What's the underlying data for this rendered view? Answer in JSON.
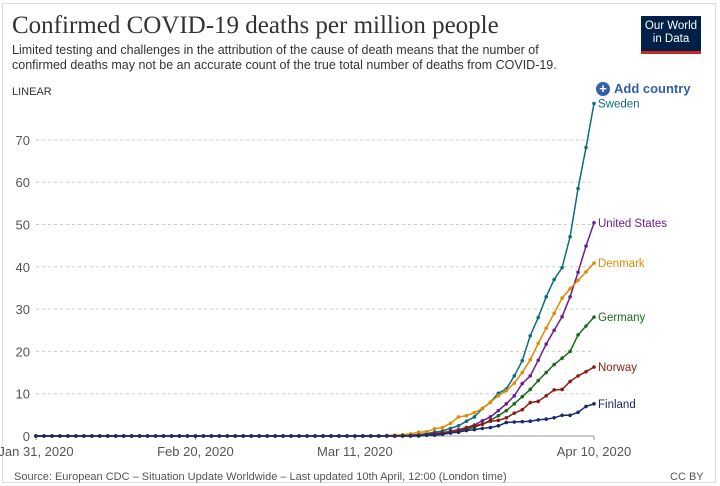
{
  "header": {
    "title": "Confirmed COVID-19 deaths per million people",
    "subtitle": "Limited testing and challenges in the attribution of the cause of death means that the number of confirmed deaths may not be an accurate count of the true total number of deaths from COVID-19.",
    "logo_line1": "Our World",
    "logo_line2": "in Data",
    "scale_toggle": "LINEAR",
    "add_country": "Add country",
    "add_icon": "plus-circle-icon"
  },
  "footer": {
    "source": "Source: European CDC – Situation Update Worldwide – Last updated 10th April, 12:00 (London time)",
    "license": "CC BY"
  },
  "chart_data": {
    "type": "line",
    "title": "Confirmed COVID-19 deaths per million people",
    "ylim": [
      0,
      80
    ],
    "yticks": [
      0,
      10,
      20,
      30,
      40,
      50,
      60,
      70
    ],
    "x_range": [
      "2020-01-31",
      "2020-04-10"
    ],
    "xticks": [
      {
        "date": "2020-01-31",
        "label": "Jan 31, 2020"
      },
      {
        "date": "2020-02-20",
        "label": "Feb 20, 2020"
      },
      {
        "date": "2020-03-11",
        "label": "Mar 11, 2020"
      },
      {
        "date": "2020-04-10",
        "label": "Apr 10, 2020"
      }
    ],
    "grid": "horizontal dashed",
    "legend": "right (end-of-line labels)",
    "series": [
      {
        "name": "Sweden",
        "color": "#0b6e79",
        "data": {
          "2020-01-31": 0,
          "2020-03-10": 0,
          "2020-03-11": 0,
          "2020-03-12": 0,
          "2020-03-13": 0,
          "2020-03-14": 0,
          "2020-03-15": 0.1,
          "2020-03-16": 0.1,
          "2020-03-17": 0.1,
          "2020-03-18": 0.2,
          "2020-03-19": 0.3,
          "2020-03-20": 0.6,
          "2020-03-21": 0.9,
          "2020-03-22": 1.2,
          "2020-03-23": 1.8,
          "2020-03-24": 2.4,
          "2020-03-25": 3.5,
          "2020-03-26": 4.5,
          "2020-03-27": 6.5,
          "2020-03-28": 8.0,
          "2020-03-29": 10.1,
          "2020-03-30": 11.1,
          "2020-03-31": 14.2,
          "2020-04-01": 17.8,
          "2020-04-02": 23.7,
          "2020-04-03": 28.0,
          "2020-04-04": 32.9,
          "2020-04-05": 37.0,
          "2020-04-06": 39.8,
          "2020-04-07": 47.1,
          "2020-04-08": 58.5,
          "2020-04-09": 68.2,
          "2020-04-10": 78.6
        }
      },
      {
        "name": "United States",
        "color": "#6d1d8e",
        "data": {
          "2020-01-31": 0,
          "2020-03-10": 0,
          "2020-03-11": 0,
          "2020-03-12": 0,
          "2020-03-13": 0,
          "2020-03-14": 0,
          "2020-03-15": 0,
          "2020-03-16": 0,
          "2020-03-17": 0.1,
          "2020-03-18": 0.2,
          "2020-03-19": 0.3,
          "2020-03-20": 0.4,
          "2020-03-21": 0.6,
          "2020-03-22": 0.8,
          "2020-03-23": 1.1,
          "2020-03-24": 1.5,
          "2020-03-25": 2.0,
          "2020-03-26": 2.6,
          "2020-03-27": 3.6,
          "2020-03-28": 4.5,
          "2020-03-29": 6.0,
          "2020-03-30": 7.6,
          "2020-03-31": 9.5,
          "2020-04-01": 12.4,
          "2020-04-02": 14.2,
          "2020-04-03": 17.9,
          "2020-04-04": 21.7,
          "2020-04-05": 25.0,
          "2020-04-06": 28.2,
          "2020-04-07": 32.9,
          "2020-04-08": 38.7,
          "2020-04-09": 44.9,
          "2020-04-10": 50.4
        }
      },
      {
        "name": "Denmark",
        "color": "#e08a00",
        "data": {
          "2020-01-31": 0,
          "2020-03-10": 0,
          "2020-03-11": 0,
          "2020-03-12": 0,
          "2020-03-13": 0,
          "2020-03-14": 0,
          "2020-03-15": 0.1,
          "2020-03-16": 0.2,
          "2020-03-17": 0.3,
          "2020-03-18": 0.5,
          "2020-03-19": 0.9,
          "2020-03-20": 1.0,
          "2020-03-21": 1.7,
          "2020-03-22": 2.0,
          "2020-03-23": 3.0,
          "2020-03-24": 4.5,
          "2020-03-25": 4.8,
          "2020-03-26": 5.5,
          "2020-03-27": 6.5,
          "2020-03-28": 8.0,
          "2020-03-29": 9.5,
          "2020-03-30": 10.7,
          "2020-03-31": 12.5,
          "2020-04-01": 15.0,
          "2020-04-02": 18.0,
          "2020-04-03": 21.9,
          "2020-04-04": 25.5,
          "2020-04-05": 29.0,
          "2020-04-06": 32.6,
          "2020-04-07": 34.8,
          "2020-04-08": 36.8,
          "2020-04-09": 38.8,
          "2020-04-10": 40.9
        }
      },
      {
        "name": "Germany",
        "color": "#18691f",
        "data": {
          "2020-01-31": 0,
          "2020-03-10": 0,
          "2020-03-11": 0,
          "2020-03-12": 0,
          "2020-03-13": 0,
          "2020-03-14": 0,
          "2020-03-15": 0,
          "2020-03-16": 0,
          "2020-03-17": 0.1,
          "2020-03-18": 0.1,
          "2020-03-19": 0.2,
          "2020-03-20": 0.3,
          "2020-03-21": 0.4,
          "2020-03-22": 0.6,
          "2020-03-23": 0.8,
          "2020-03-24": 1.2,
          "2020-03-25": 1.6,
          "2020-03-26": 2.1,
          "2020-03-27": 2.8,
          "2020-03-28": 3.7,
          "2020-03-29": 4.8,
          "2020-03-30": 6.0,
          "2020-03-31": 7.6,
          "2020-04-01": 9.3,
          "2020-04-02": 11.0,
          "2020-04-03": 13.1,
          "2020-04-04": 15.0,
          "2020-04-05": 16.9,
          "2020-04-06": 18.4,
          "2020-04-07": 20.0,
          "2020-04-08": 23.9,
          "2020-04-09": 26.0,
          "2020-04-10": 28.1
        }
      },
      {
        "name": "Norway",
        "color": "#8c1c13",
        "data": {
          "2020-01-31": 0,
          "2020-03-10": 0,
          "2020-03-11": 0,
          "2020-03-12": 0,
          "2020-03-13": 0,
          "2020-03-14": 0,
          "2020-03-15": 0,
          "2020-03-16": 0,
          "2020-03-17": 0,
          "2020-03-18": 0,
          "2020-03-19": 0.1,
          "2020-03-20": 0.2,
          "2020-03-21": 0.4,
          "2020-03-22": 0.7,
          "2020-03-23": 1.1,
          "2020-03-24": 1.3,
          "2020-03-25": 2.0,
          "2020-03-26": 2.4,
          "2020-03-27": 2.8,
          "2020-03-28": 3.5,
          "2020-03-29": 3.7,
          "2020-03-30": 4.3,
          "2020-03-31": 5.4,
          "2020-04-01": 6.2,
          "2020-04-02": 7.9,
          "2020-04-03": 8.2,
          "2020-04-04": 9.5,
          "2020-04-05": 10.9,
          "2020-04-06": 11.0,
          "2020-04-07": 12.9,
          "2020-04-08": 14.2,
          "2020-04-09": 15.2,
          "2020-04-10": 16.3
        }
      },
      {
        "name": "Finland",
        "color": "#1a2a6c",
        "data": {
          "2020-01-31": 0,
          "2020-03-10": 0,
          "2020-03-11": 0,
          "2020-03-12": 0,
          "2020-03-13": 0,
          "2020-03-14": 0,
          "2020-03-15": 0,
          "2020-03-16": 0,
          "2020-03-17": 0,
          "2020-03-18": 0,
          "2020-03-19": 0,
          "2020-03-20": 0.2,
          "2020-03-21": 0.2,
          "2020-03-22": 0.4,
          "2020-03-23": 0.7,
          "2020-03-24": 0.9,
          "2020-03-25": 1.3,
          "2020-03-26": 1.5,
          "2020-03-27": 1.8,
          "2020-03-28": 2.0,
          "2020-03-29": 2.4,
          "2020-03-30": 3.2,
          "2020-03-31": 3.3,
          "2020-04-01": 3.4,
          "2020-04-02": 3.5,
          "2020-04-03": 3.8,
          "2020-04-04": 4.0,
          "2020-04-05": 4.3,
          "2020-04-06": 4.9,
          "2020-04-07": 4.9,
          "2020-04-08": 5.6,
          "2020-04-09": 7.0,
          "2020-04-10": 7.6
        }
      }
    ]
  }
}
